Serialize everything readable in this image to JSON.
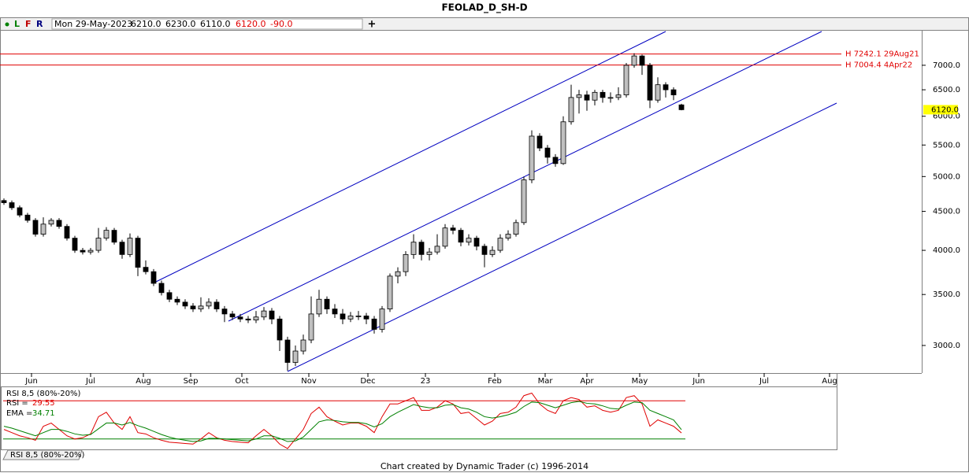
{
  "chart_data": {
    "type": "candlestick",
    "title": "FEOLAD_D_SH-D",
    "toolbar": [
      "L",
      "F",
      "R"
    ],
    "header": {
      "date": "Mon 29-May-2023",
      "open": "6210.0",
      "high": "6230.0",
      "low": "6110.0",
      "close": "6120.0",
      "change": "-90.0"
    },
    "footer": "Chart created by Dynamic Trader  (c) 1996-2014",
    "log_scale": true,
    "xlim": [
      -0.5,
      105.7
    ],
    "xticks": [
      {
        "value": 3.5,
        "label": "Jun"
      },
      {
        "value": 11,
        "label": "Jul"
      },
      {
        "value": 17.7,
        "label": "Aug"
      },
      {
        "value": 23.7,
        "label": "Sep"
      },
      {
        "value": 30.2,
        "label": "Oct"
      },
      {
        "value": 38.7,
        "label": "Nov"
      },
      {
        "value": 46.2,
        "label": "Dec"
      },
      {
        "value": 53.5,
        "label": "23"
      },
      {
        "value": 62.3,
        "label": "Feb"
      },
      {
        "value": 68.7,
        "label": "Mar"
      },
      {
        "value": 74,
        "label": "Apr"
      },
      {
        "value": 80.7,
        "label": "May"
      },
      {
        "value": 88.2,
        "label": "Jun"
      },
      {
        "value": 96.5,
        "label": "Jul"
      },
      {
        "value": 104.8,
        "label": "Aug"
      }
    ],
    "ylim": [
      2760,
      7790
    ],
    "yticks": [
      {
        "value": 3000,
        "label": "3000.0"
      },
      {
        "value": 3500,
        "label": "3500.0"
      },
      {
        "value": 4000,
        "label": "4000.0"
      },
      {
        "value": 4500,
        "label": "4500.0"
      },
      {
        "value": 5000,
        "label": "5000.0"
      },
      {
        "value": 5500,
        "label": "5500.0"
      },
      {
        "value": 6000,
        "label": "6000.0"
      },
      {
        "value": 6500,
        "label": "6500.0"
      },
      {
        "value": 7000,
        "label": "7000.0"
      }
    ],
    "up_color": "#c0c0c0",
    "down_color": "#000000",
    "open": [
      4650,
      4620,
      4550,
      4450,
      4380,
      4200,
      4330,
      4380,
      4300,
      4150,
      4000,
      3980,
      4000,
      4150,
      4250,
      4100,
      3950,
      4150,
      3800,
      3750,
      3620,
      3520,
      3450,
      3420,
      3380,
      3350,
      3380,
      3420,
      3350,
      3300,
      3270,
      3250,
      3240,
      3270,
      3330,
      3250,
      3050,
      2850,
      2950,
      3050,
      3300,
      3450,
      3350,
      3300,
      3250,
      3280,
      3280,
      3250,
      3150,
      3350,
      3700,
      3750,
      3950,
      4100,
      3950,
      3980,
      4050,
      4280,
      4250,
      4100,
      4150,
      4050,
      3950,
      4000,
      4150,
      4200,
      4350,
      4950,
      5650,
      5450,
      5300,
      5200,
      5900,
      6350,
      6400,
      6300,
      6450,
      6350,
      6350,
      6400,
      7000,
      7200,
      7000,
      6300,
      6600,
      6500,
      6210
    ],
    "high": [
      4680,
      4650,
      4580,
      4480,
      4410,
      4420,
      4410,
      4410,
      4330,
      4180,
      4030,
      4030,
      4280,
      4290,
      4280,
      4130,
      4210,
      4180,
      3880,
      3780,
      3650,
      3550,
      3480,
      3450,
      3410,
      3470,
      3460,
      3450,
      3380,
      3330,
      3300,
      3280,
      3330,
      3370,
      3360,
      3280,
      3080,
      3000,
      3100,
      3480,
      3550,
      3480,
      3400,
      3350,
      3320,
      3330,
      3310,
      3280,
      3380,
      3730,
      3800,
      3990,
      4200,
      4130,
      4030,
      4200,
      4330,
      4320,
      4280,
      4200,
      4180,
      4080,
      4050,
      4200,
      4250,
      4390,
      5000,
      5750,
      5700,
      5500,
      5350,
      6000,
      6600,
      6500,
      6480,
      6500,
      6500,
      6450,
      6550,
      7050,
      7260,
      7230,
      7050,
      6750,
      6650,
      6550,
      6230
    ],
    "low": [
      4590,
      4520,
      4420,
      4350,
      4170,
      4170,
      4300,
      4270,
      4120,
      3970,
      3950,
      3950,
      3970,
      4120,
      4070,
      3900,
      3920,
      3700,
      3720,
      3590,
      3490,
      3420,
      3390,
      3350,
      3320,
      3320,
      3350,
      3320,
      3220,
      3240,
      3220,
      3210,
      3210,
      3240,
      3200,
      2950,
      2780,
      2820,
      2920,
      3020,
      3270,
      3300,
      3260,
      3200,
      3220,
      3240,
      3200,
      3110,
      3120,
      3320,
      3620,
      3700,
      3900,
      3880,
      3880,
      3950,
      4020,
      4200,
      4050,
      4060,
      4000,
      3800,
      3920,
      3970,
      4120,
      4170,
      4320,
      4900,
      5400,
      5200,
      5150,
      5180,
      5850,
      6050,
      6100,
      6200,
      6250,
      6250,
      6300,
      6350,
      6950,
      6800,
      6150,
      6250,
      6350,
      6300,
      6110
    ],
    "close": [
      4620,
      4550,
      4450,
      4380,
      4200,
      4330,
      4380,
      4300,
      4150,
      4000,
      3980,
      4000,
      4150,
      4250,
      4100,
      3950,
      4150,
      3800,
      3750,
      3620,
      3520,
      3450,
      3420,
      3380,
      3350,
      3380,
      3420,
      3350,
      3300,
      3270,
      3250,
      3240,
      3270,
      3330,
      3250,
      3050,
      2850,
      2950,
      3050,
      3300,
      3450,
      3350,
      3300,
      3250,
      3280,
      3280,
      3250,
      3150,
      3350,
      3700,
      3750,
      3950,
      4100,
      3950,
      3980,
      4050,
      4280,
      4250,
      4100,
      4150,
      4050,
      3950,
      4000,
      4150,
      4200,
      4350,
      4950,
      5650,
      5450,
      5300,
      5200,
      5900,
      6350,
      6400,
      6300,
      6450,
      6350,
      6350,
      6400,
      7000,
      7200,
      7000,
      6300,
      6600,
      6500,
      6400,
      6120
    ],
    "last_price": {
      "value": 6120,
      "label": "6120.0"
    },
    "levels": [
      {
        "value": 7242.1,
        "label": "H 7242.1 29Aug21",
        "color": "#e00000"
      },
      {
        "value": 7004.4,
        "label": "H 7004.4 4Apr22",
        "color": "#e00000"
      }
    ],
    "indicator": {
      "title": "RSI 8,5 (80%-20%)",
      "tab": "RSI 8,5 (80%-20%)",
      "ylim": [
        0,
        100
      ],
      "levels": [
        {
          "value": 80,
          "color": "#e00000"
        },
        {
          "value": 20,
          "color": "#008000"
        }
      ],
      "series": [
        {
          "name": "RSI =",
          "last_label": "29.55",
          "color": "#e00000",
          "values": [
            35,
            30,
            25,
            22,
            18,
            40,
            45,
            35,
            25,
            20,
            22,
            28,
            55,
            62,
            45,
            35,
            55,
            30,
            28,
            22,
            18,
            15,
            14,
            13,
            12,
            20,
            30,
            22,
            18,
            16,
            15,
            14,
            25,
            35,
            25,
            12,
            5,
            20,
            35,
            60,
            70,
            55,
            48,
            42,
            45,
            45,
            40,
            30,
            55,
            75,
            75,
            80,
            85,
            65,
            65,
            70,
            80,
            75,
            60,
            62,
            52,
            42,
            48,
            60,
            62,
            70,
            88,
            92,
            75,
            65,
            60,
            80,
            85,
            82,
            70,
            72,
            65,
            62,
            65,
            85,
            88,
            75,
            40,
            50,
            45,
            40,
            29.55
          ]
        },
        {
          "name": "EMA =",
          "last_label": "34.71",
          "color": "#008000",
          "values": [
            40,
            37,
            33,
            29,
            25,
            30,
            35,
            35,
            32,
            28,
            26,
            27,
            36,
            45,
            45,
            42,
            46,
            41,
            37,
            32,
            27,
            23,
            20,
            18,
            16,
            17,
            21,
            21,
            20,
            19,
            18,
            17,
            20,
            25,
            25,
            21,
            16,
            17,
            23,
            35,
            47,
            50,
            49,
            47,
            46,
            46,
            44,
            39,
            44,
            55,
            62,
            68,
            74,
            71,
            69,
            69,
            73,
            74,
            69,
            67,
            62,
            55,
            53,
            55,
            58,
            62,
            71,
            78,
            77,
            73,
            69,
            73,
            77,
            79,
            76,
            75,
            72,
            68,
            67,
            73,
            78,
            77,
            65,
            60,
            55,
            50,
            34.71
          ]
        }
      ]
    }
  }
}
